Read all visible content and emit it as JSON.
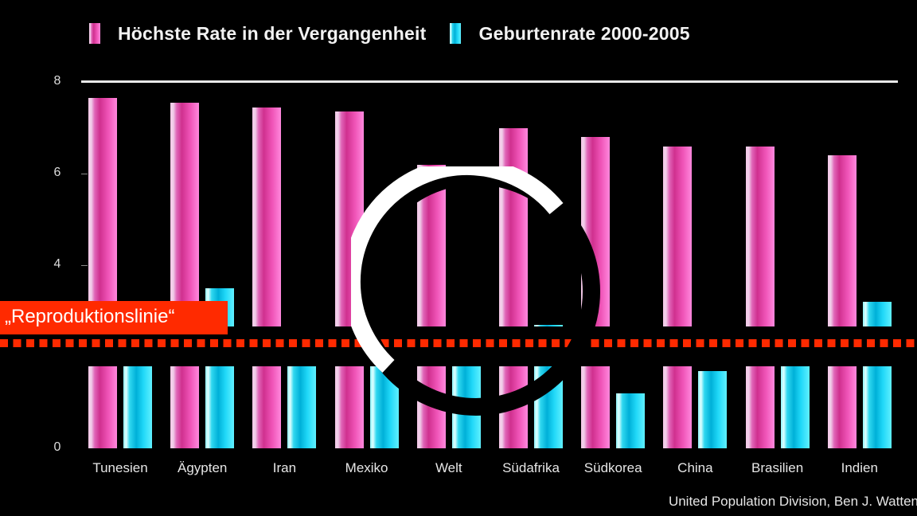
{
  "legend": [
    {
      "label": "Höchste Rate in der Vergangenheit",
      "color": "#e040a8"
    },
    {
      "label": "Geburtenrate 2000-2005",
      "color": "#20d0f0"
    }
  ],
  "yaxis": {
    "ticks": [
      "8",
      "6",
      "4",
      "0"
    ]
  },
  "annotation": {
    "label": "„Reproduktionslinie“",
    "color": "#ff2a00"
  },
  "source": "United Population Division, Ben J. Watten",
  "x_labels": [
    "Tunesien",
    "Ägypten",
    "Iran",
    "Mexiko",
    "Welt",
    "Südafrika",
    "Südkorea",
    "China",
    "Brasilien",
    "Indien"
  ],
  "chart_data": {
    "type": "bar",
    "title": "",
    "xlabel": "",
    "ylabel": "",
    "ylim": [
      0,
      8
    ],
    "axis_break": true,
    "categories": [
      "Tunesien",
      "Ägypten",
      "Iran",
      "Mexiko",
      "Welt",
      "Südafrika",
      "Südkorea",
      "China",
      "Brasilien",
      "Indien"
    ],
    "series": [
      {
        "name": "Höchste Rate in der Vergangenheit",
        "color": "#e040a8",
        "values": [
          7.65,
          7.55,
          7.45,
          7.35,
          6.2,
          7.0,
          6.8,
          6.6,
          6.6,
          6.4
        ]
      },
      {
        "name": "Geburtenrate 2000-2005",
        "color": "#20d0f0",
        "values": [
          2.0,
          3.5,
          2.0,
          2.4,
          2.6,
          2.7,
          1.2,
          1.7,
          2.3,
          3.2
        ]
      }
    ],
    "reference_line": {
      "label": "Reproduktionslinie",
      "value": 2.1,
      "style": "dotted",
      "color": "#ff2a00"
    },
    "legend_position": "top",
    "grid": false,
    "yticks": [
      0,
      4,
      6,
      8
    ],
    "source": "United Population Division, Ben J. Watten"
  }
}
